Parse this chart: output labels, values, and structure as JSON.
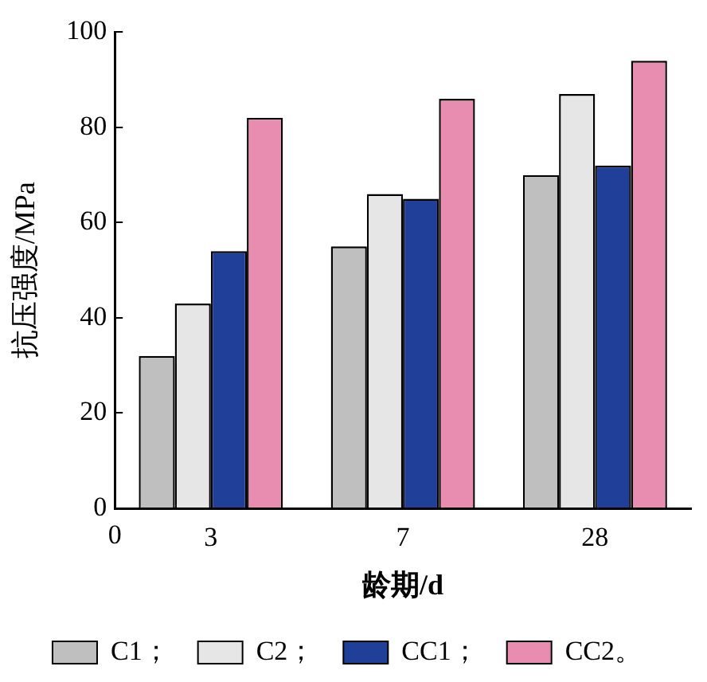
{
  "chart_data": {
    "type": "bar",
    "xlabel": "龄期/d",
    "ylabel": "抗压强度/MPa",
    "categories": [
      "3",
      "7",
      "28"
    ],
    "series": [
      {
        "name": "C1；",
        "color": "#bfbfbf",
        "values": [
          32,
          55,
          70
        ]
      },
      {
        "name": "C2；",
        "color": "#e6e6e6",
        "values": [
          43,
          66,
          87
        ]
      },
      {
        "name": "CC1；",
        "color": "#1f3f99",
        "values": [
          54,
          65,
          72
        ]
      },
      {
        "name": "CC2。",
        "color": "#e88cb0",
        "values": [
          82,
          86,
          94
        ]
      }
    ],
    "ylim": [
      0,
      100
    ],
    "yticks": [
      0,
      20,
      40,
      60,
      80,
      100
    ],
    "grid": false,
    "legend": "bottom",
    "annotations": [
      "0"
    ]
  }
}
